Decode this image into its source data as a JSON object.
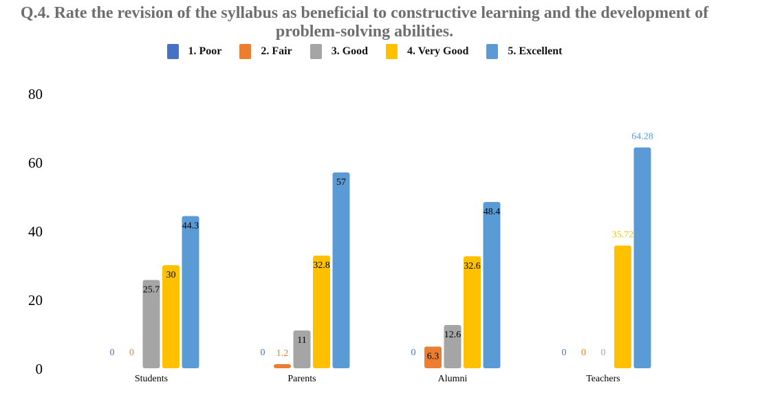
{
  "chart_data": {
    "type": "bar",
    "title": "Q.4. Rate the revision of the syllabus as beneficial to constructive learning and the development of problem-solving abilities.",
    "categories": [
      "Students",
      "Parents",
      "Alumni",
      "Teachers"
    ],
    "series": [
      {
        "name": "1.  Poor",
        "color": "#4472C4",
        "label_color": "#4472C4",
        "values": [
          0,
          0,
          0,
          0
        ],
        "labels": [
          "0",
          "0",
          "0",
          "0"
        ]
      },
      {
        "name": "2.  Fair",
        "color": "#ED7D31",
        "label_color": "#ED7D31",
        "values": [
          0,
          1.2,
          6.3,
          0
        ],
        "labels": [
          "0",
          "1.2",
          "6.3",
          "0"
        ]
      },
      {
        "name": "3.  Good",
        "color": "#A5A5A5",
        "label_color": "#A5A5A5",
        "values": [
          25.7,
          11,
          12.6,
          0
        ],
        "labels": [
          "25.7",
          "11",
          "12.6",
          "0"
        ]
      },
      {
        "name": "4.  Very Good",
        "color": "#FFC000",
        "label_color": "#FFC000",
        "values": [
          30,
          32.8,
          32.6,
          35.72
        ],
        "labels": [
          "30",
          "32.8",
          "32.6",
          "35.72"
        ]
      },
      {
        "name": "5.  Excellent",
        "color": "#5B9BD5",
        "label_color": "#5B9BD5",
        "values": [
          44.3,
          57,
          48.4,
          64.28
        ],
        "labels": [
          "44.3",
          "57",
          "48.4",
          "64.28"
        ]
      }
    ],
    "yticks": [
      "0",
      "20",
      "40",
      "60",
      "80"
    ],
    "ylim": [
      0,
      80
    ],
    "xlabel": "",
    "ylabel": "",
    "grid": false,
    "legend_position": "top"
  }
}
